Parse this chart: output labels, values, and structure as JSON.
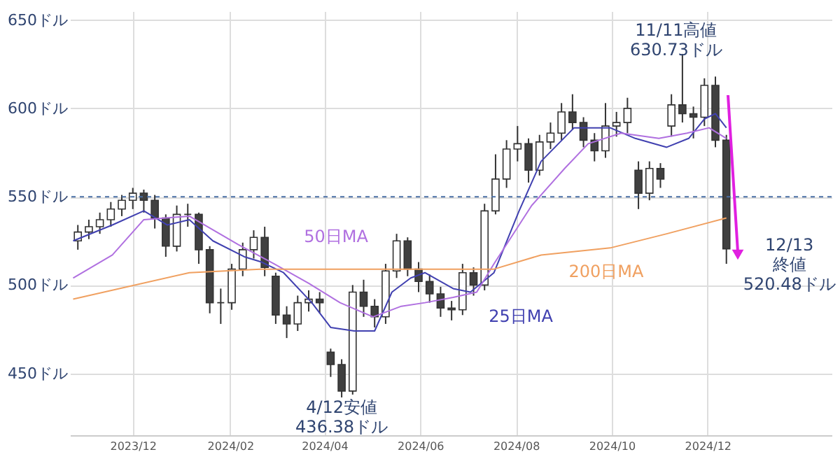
{
  "chart_data": {
    "type": "candlestick",
    "x": [
      "2023-10-27",
      "2023-11-03",
      "2023-11-10",
      "2023-11-17",
      "2023-11-24",
      "2023-12-01",
      "2023-12-08",
      "2023-12-15",
      "2023-12-22",
      "2023-12-29",
      "2024-01-05",
      "2024-01-12",
      "2024-01-19",
      "2024-01-26",
      "2024-02-02",
      "2024-02-09",
      "2024-02-16",
      "2024-02-23",
      "2024-03-01",
      "2024-03-08",
      "2024-03-15",
      "2024-03-22",
      "2024-03-29",
      "2024-04-05",
      "2024-04-12",
      "2024-04-19",
      "2024-04-26",
      "2024-05-03",
      "2024-05-10",
      "2024-05-17",
      "2024-05-24",
      "2024-05-31",
      "2024-06-07",
      "2024-06-14",
      "2024-06-21",
      "2024-06-28",
      "2024-07-05",
      "2024-07-12",
      "2024-07-19",
      "2024-07-26",
      "2024-08-02",
      "2024-08-09",
      "2024-08-16",
      "2024-08-23",
      "2024-08-30",
      "2024-09-06",
      "2024-09-13",
      "2024-09-20",
      "2024-09-27",
      "2024-10-04",
      "2024-10-11",
      "2024-10-18",
      "2024-10-25",
      "2024-11-01",
      "2024-11-08",
      "2024-11-15",
      "2024-11-22",
      "2024-11-29",
      "2024-12-06",
      "2024-12-13"
    ],
    "ohlc": [
      [
        525,
        534,
        520,
        530
      ],
      [
        530,
        537,
        526,
        533
      ],
      [
        533,
        541,
        529,
        537
      ],
      [
        537,
        547,
        533,
        543
      ],
      [
        543,
        551,
        539,
        548
      ],
      [
        548,
        555,
        543,
        552
      ],
      [
        552,
        554,
        541,
        548
      ],
      [
        548,
        551,
        532,
        538
      ],
      [
        538,
        540,
        516,
        522
      ],
      [
        522,
        545,
        519,
        540
      ],
      [
        540,
        546,
        533,
        540
      ],
      [
        540,
        541,
        512,
        520
      ],
      [
        520,
        522,
        484,
        490
      ],
      [
        490,
        498,
        478,
        490
      ],
      [
        490,
        512,
        486,
        509
      ],
      [
        509,
        524,
        505,
        520
      ],
      [
        520,
        531,
        515,
        527
      ],
      [
        527,
        533,
        505,
        510
      ],
      [
        505,
        507,
        478,
        483
      ],
      [
        483,
        488,
        470,
        478
      ],
      [
        478,
        494,
        474,
        490
      ],
      [
        490,
        497,
        485,
        492
      ],
      [
        492,
        496,
        484,
        490
      ],
      [
        462,
        464,
        448,
        455
      ],
      [
        455,
        458,
        436.38,
        440
      ],
      [
        440,
        500,
        438,
        496
      ],
      [
        496,
        503,
        482,
        488
      ],
      [
        488,
        492,
        476,
        482
      ],
      [
        482,
        512,
        478,
        508
      ],
      [
        508,
        529,
        504,
        525
      ],
      [
        525,
        527,
        505,
        509
      ],
      [
        509,
        513,
        496,
        502
      ],
      [
        502,
        506,
        490,
        495
      ],
      [
        495,
        499,
        482,
        487
      ],
      [
        487,
        491,
        480,
        486
      ],
      [
        486,
        512,
        483,
        507
      ],
      [
        507,
        510,
        494,
        500
      ],
      [
        500,
        546,
        497,
        542
      ],
      [
        542,
        574,
        540,
        560
      ],
      [
        560,
        582,
        555,
        577
      ],
      [
        577,
        590,
        570,
        580
      ],
      [
        580,
        583,
        558,
        565
      ],
      [
        565,
        585,
        562,
        581
      ],
      [
        581,
        592,
        577,
        586
      ],
      [
        586,
        603,
        582,
        598
      ],
      [
        598,
        608,
        588,
        592
      ],
      [
        592,
        595,
        578,
        582
      ],
      [
        582,
        586,
        570,
        576
      ],
      [
        576,
        603,
        572,
        590
      ],
      [
        590,
        598,
        584,
        592
      ],
      [
        592,
        606,
        586,
        600
      ],
      [
        565,
        570,
        543,
        552
      ],
      [
        552,
        570,
        548,
        566
      ],
      [
        566,
        569,
        555,
        560
      ],
      [
        590,
        608,
        584,
        602
      ],
      [
        602,
        630.73,
        592,
        597
      ],
      [
        597,
        601,
        583,
        595
      ],
      [
        595,
        617,
        590,
        613
      ],
      [
        613,
        618,
        578,
        582
      ],
      [
        582,
        585,
        512,
        520.48
      ]
    ],
    "series": [
      {
        "name": "25日MA",
        "type": "line",
        "color": "#4040b0",
        "x": [
          "2023-10-24",
          "2023-11-18",
          "2023-12-08",
          "2023-12-23",
          "2024-01-06",
          "2024-01-21",
          "2024-02-10",
          "2024-02-21",
          "2024-03-06",
          "2024-03-24",
          "2024-04-05",
          "2024-04-20",
          "2024-05-03",
          "2024-05-14",
          "2024-05-26",
          "2024-06-04",
          "2024-06-22",
          "2024-07-03",
          "2024-07-18",
          "2024-08-03",
          "2024-08-17",
          "2024-09-07",
          "2024-09-30",
          "2024-10-16",
          "2024-11-05",
          "2024-11-19",
          "2024-11-29",
          "2024-12-06",
          "2024-12-13"
        ],
        "values": [
          525,
          534,
          542,
          534,
          537,
          525,
          516,
          513,
          507,
          490,
          476,
          474,
          474,
          496,
          504,
          507,
          498,
          496,
          507,
          542,
          570,
          589,
          589,
          583,
          578,
          583,
          594,
          597,
          589
        ]
      },
      {
        "name": "50日MA",
        "type": "line",
        "color": "#b070e0",
        "x": [
          "2023-10-24",
          "2023-11-18",
          "2023-12-08",
          "2024-01-06",
          "2024-02-06",
          "2024-02-29",
          "2024-03-22",
          "2024-04-11",
          "2024-05-02",
          "2024-05-20",
          "2024-06-04",
          "2024-06-22",
          "2024-07-07",
          "2024-07-18",
          "2024-08-11",
          "2024-09-01",
          "2024-09-16",
          "2024-10-07",
          "2024-10-31",
          "2024-11-18",
          "2024-12-02",
          "2024-12-13"
        ],
        "values": [
          504,
          517,
          537,
          539,
          523,
          512,
          501,
          490,
          482,
          488,
          490,
          493,
          496,
          512,
          545,
          566,
          580,
          586,
          583,
          586,
          589,
          583
        ]
      },
      {
        "name": "200日MA",
        "type": "line",
        "color": "#f0a060",
        "x": [
          "2023-10-24",
          "2024-01-06",
          "2024-02-20",
          "2024-05-26",
          "2024-07-18",
          "2024-08-17",
          "2024-09-30",
          "2024-11-05",
          "2024-12-13"
        ],
        "values": [
          492,
          507,
          509,
          509,
          509,
          517,
          521,
          529,
          538
        ]
      }
    ],
    "ref_lines": [
      {
        "axis": "y",
        "value": 550,
        "color": "#4a6fa5",
        "line_style": "dashed"
      }
    ],
    "annotations": [
      {
        "text": "11/11高値\n630.73ドル",
        "x": "2024-11-11",
        "y": 630.73
      },
      {
        "text": "4/12安値\n436.38ドル",
        "x": "2024-04-12",
        "y": 436.38
      },
      {
        "text": "12/13\n終値\n520.48ドル",
        "x": "2024-12-13",
        "y": 520.48
      }
    ],
    "xlim": [
      "2023-10-22",
      "2025-02-18"
    ],
    "xticks": [
      {
        "value": "2023-12",
        "label": "2023/12"
      },
      {
        "value": "2024-02",
        "label": "2024/02"
      },
      {
        "value": "2024-04",
        "label": "2024/04"
      },
      {
        "value": "2024-06",
        "label": "2024/06"
      },
      {
        "value": "2024-08",
        "label": "2024/08"
      },
      {
        "value": "2024-10",
        "label": "2024/10"
      },
      {
        "value": "2024-12",
        "label": "2024/12"
      }
    ],
    "ylim": [
      415,
      655
    ],
    "yticks": [
      {
        "value": 450,
        "label": "450ドル"
      },
      {
        "value": 500,
        "label": "500ドル"
      },
      {
        "value": 550,
        "label": "550ドル"
      },
      {
        "value": 600,
        "label": "600ドル"
      },
      {
        "value": 650,
        "label": "650ドル"
      }
    ],
    "grid": true
  }
}
